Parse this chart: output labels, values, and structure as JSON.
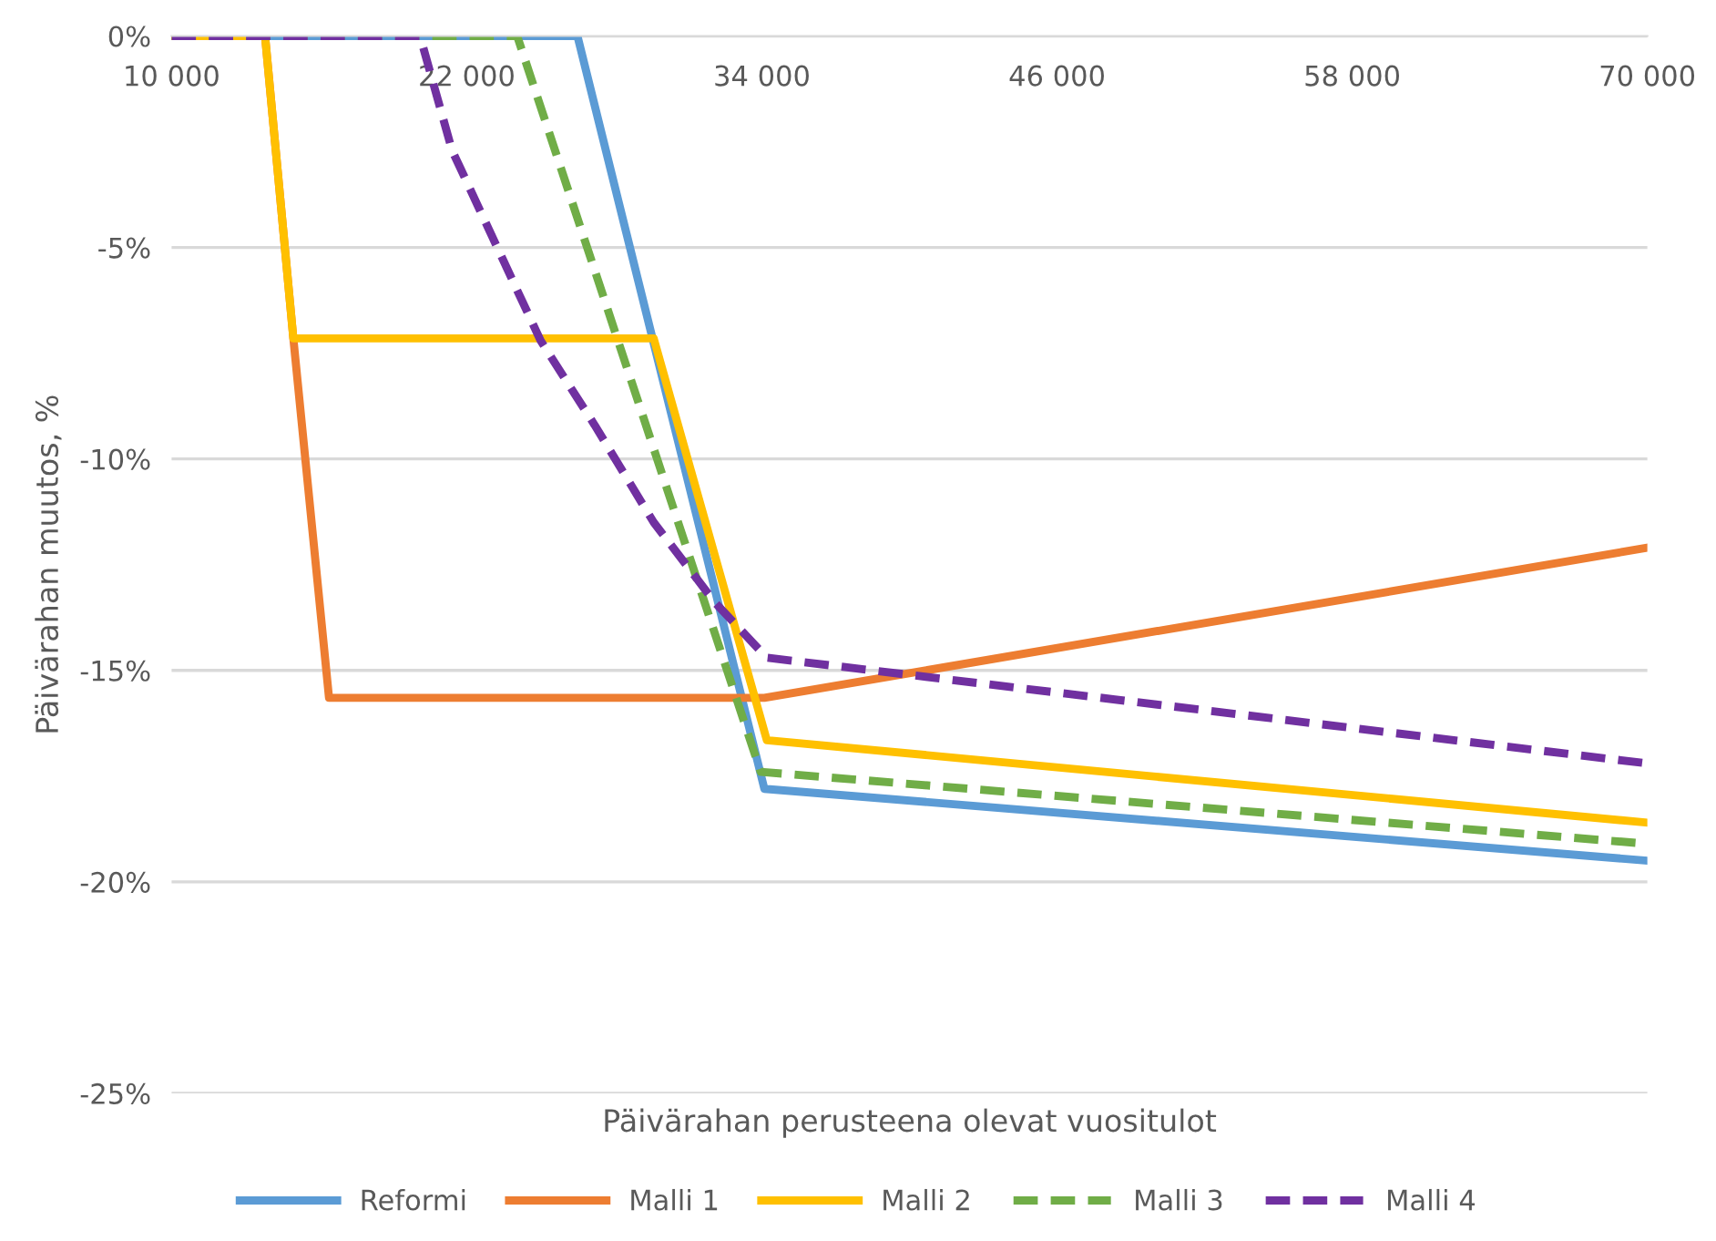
{
  "chart_data": {
    "type": "line",
    "xlabel": "Päivärahan perusteena olevat vuositulot",
    "ylabel": "Päivärahan muutos, %",
    "xlim": [
      10000,
      70000
    ],
    "xticks": [
      {
        "value": 10000,
        "label": "10 000"
      },
      {
        "value": 22000,
        "label": "22 000"
      },
      {
        "value": 34000,
        "label": "34 000"
      },
      {
        "value": 46000,
        "label": "46 000"
      },
      {
        "value": 58000,
        "label": "58 000"
      },
      {
        "value": 70000,
        "label": "70 000"
      }
    ],
    "ylim": [
      -25,
      0
    ],
    "yticks": [
      {
        "value": 0,
        "label": "0%"
      },
      {
        "value": -5,
        "label": "-5%"
      },
      {
        "value": -10,
        "label": "-10%"
      },
      {
        "value": -15,
        "label": "-15%"
      },
      {
        "value": -20,
        "label": "-20%"
      },
      {
        "value": -25,
        "label": "-25%"
      }
    ],
    "grid": "y",
    "legend": "bottom",
    "marker": "none",
    "series": [
      {
        "name": "Reformi",
        "color": "#5b9bd5",
        "line_style": "solid",
        "x": [
          10000,
          26500,
          34100,
          70000
        ],
        "values": [
          0,
          0,
          -17.8,
          -19.5
        ]
      },
      {
        "name": "Malli 1",
        "color": "#ed7d31",
        "line_style": "solid",
        "x": [
          10000,
          13800,
          14950,
          16400,
          34100,
          70000
        ],
        "values": [
          0,
          0,
          -7.15,
          -15.65,
          -15.65,
          -12.1
        ]
      },
      {
        "name": "Malli 2",
        "color": "#ffc000",
        "line_style": "solid",
        "x": [
          10000,
          13800,
          14950,
          29600,
          34200,
          70000
        ],
        "values": [
          0,
          0,
          -7.15,
          -7.15,
          -16.65,
          -18.6
        ]
      },
      {
        "name": "Malli 3",
        "color": "#70ad47",
        "line_style": "dashed",
        "x": [
          10000,
          24050,
          33950,
          70000
        ],
        "values": [
          0,
          0,
          -17.4,
          -19.1
        ]
      },
      {
        "name": "Malli 4",
        "color": "#7030a0",
        "line_style": "dashed",
        "x": [
          10000,
          20100,
          21400,
          23000,
          25000,
          27200,
          29600,
          32100,
          34200,
          70000
        ],
        "values": [
          0,
          0,
          -2.7,
          -4.7,
          -7.2,
          -9.2,
          -11.5,
          -13.4,
          -14.7,
          -17.2
        ]
      }
    ]
  }
}
